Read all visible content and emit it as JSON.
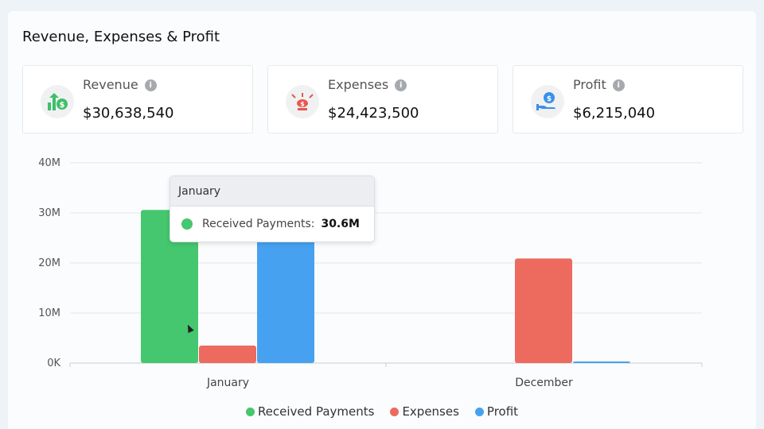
{
  "panel": {
    "title": "Revenue, Expenses & Profit"
  },
  "cards": [
    {
      "label": "Revenue",
      "value": "$30,638,540",
      "icon": "money-growth-icon",
      "icon_color": "#3fbf6a"
    },
    {
      "label": "Expenses",
      "value": "$24,423,500",
      "icon": "money-scatter-icon",
      "icon_color": "#e8584d"
    },
    {
      "label": "Profit",
      "value": "$6,215,040",
      "icon": "hand-coin-icon",
      "icon_color": "#3b8fe8"
    }
  ],
  "tooltip": {
    "title": "January",
    "series": "Received Payments:",
    "value": "30.6M",
    "color": "#44c76e"
  },
  "chart_data": {
    "type": "bar",
    "categories": [
      "January",
      "December"
    ],
    "series": [
      {
        "name": "Received Payments",
        "color": "#44c76e",
        "values": [
          30.6,
          0
        ]
      },
      {
        "name": "Expenses",
        "color": "#ec6a5e",
        "values": [
          3.5,
          20.9
        ]
      },
      {
        "name": "Profit",
        "color": "#46a2f1",
        "values": [
          29.5,
          0.1
        ]
      }
    ],
    "ylim": [
      0,
      40
    ],
    "yticks": [
      0,
      10,
      20,
      30,
      40
    ],
    "ytick_labels": [
      "0K",
      "10M",
      "20M",
      "30M",
      "40M"
    ],
    "xlabel": "",
    "ylabel": "",
    "grid": true,
    "legend": "bottom-center"
  }
}
